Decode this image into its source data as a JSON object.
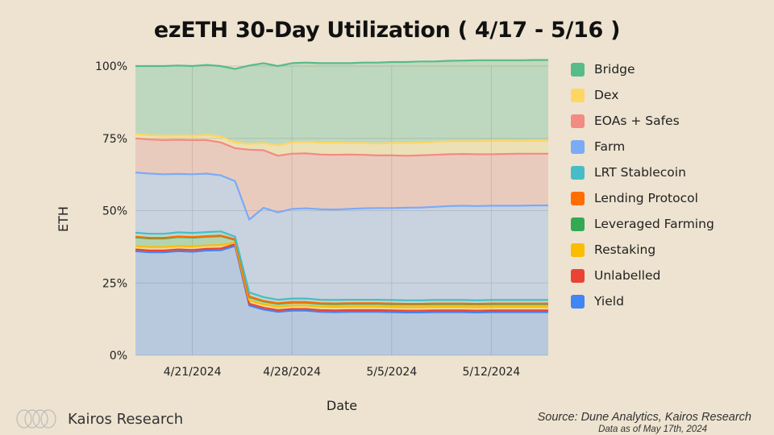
{
  "chart_data": {
    "type": "area",
    "stacked": true,
    "title": "ezETH 30-Day Utilization ( 4/17 - 5/16 )",
    "xlabel": "Date",
    "ylabel": "ETH",
    "ylim": [
      0,
      100
    ],
    "yticks": [
      "0%",
      "25%",
      "50%",
      "75%",
      "100%"
    ],
    "xticks": [
      {
        "date": "2024-04-21",
        "label": "4/21/2024"
      },
      {
        "date": "2024-04-28",
        "label": "4/28/2024"
      },
      {
        "date": "2024-05-05",
        "label": "5/5/2024"
      },
      {
        "date": "2024-05-12",
        "label": "5/12/2024"
      }
    ],
    "grid": true,
    "legend_position": "right",
    "x": [
      "2024-04-17",
      "2024-04-18",
      "2024-04-19",
      "2024-04-20",
      "2024-04-21",
      "2024-04-22",
      "2024-04-23",
      "2024-04-24",
      "2024-04-25",
      "2024-04-26",
      "2024-04-27",
      "2024-04-28",
      "2024-04-29",
      "2024-04-30",
      "2024-05-01",
      "2024-05-02",
      "2024-05-03",
      "2024-05-04",
      "2024-05-05",
      "2024-05-06",
      "2024-05-07",
      "2024-05-08",
      "2024-05-09",
      "2024-05-10",
      "2024-05-11",
      "2024-05-12",
      "2024-05-13",
      "2024-05-14",
      "2024-05-15",
      "2024-05-16"
    ],
    "series": [
      {
        "name": "Yield",
        "color": "#4285f4",
        "values": [
          36.0,
          35.6,
          35.6,
          36.0,
          35.8,
          36.2,
          36.3,
          37.8,
          17.2,
          15.8,
          15.0,
          15.4,
          15.4,
          15.0,
          14.9,
          15.0,
          15.0,
          15.0,
          14.9,
          14.8,
          14.8,
          14.9,
          14.9,
          14.9,
          14.8,
          14.9,
          14.9,
          14.9,
          14.9,
          14.9
        ]
      },
      {
        "name": "Unlabelled",
        "color": "#ea4335",
        "values": [
          0.6,
          0.6,
          0.6,
          0.6,
          0.6,
          0.6,
          0.6,
          0.6,
          0.6,
          0.6,
          0.6,
          0.6,
          0.6,
          0.6,
          0.6,
          0.6,
          0.6,
          0.6,
          0.6,
          0.6,
          0.6,
          0.6,
          0.6,
          0.6,
          0.6,
          0.6,
          0.6,
          0.6,
          0.6,
          0.6
        ]
      },
      {
        "name": "Restaking",
        "color": "#fbbc04",
        "values": [
          1.2,
          1.2,
          1.2,
          1.2,
          1.2,
          1.2,
          1.2,
          0.5,
          1.2,
          1.2,
          1.2,
          1.2,
          1.2,
          1.2,
          1.2,
          1.2,
          1.2,
          1.2,
          1.2,
          1.2,
          1.2,
          1.2,
          1.2,
          1.2,
          1.2,
          1.2,
          1.2,
          1.2,
          1.2,
          1.2
        ]
      },
      {
        "name": "Leveraged Farming",
        "color": "#34a853",
        "values": [
          3.0,
          3.0,
          3.0,
          3.1,
          3.1,
          3.0,
          3.1,
          1.0,
          1.1,
          1.0,
          1.0,
          1.0,
          1.0,
          1.0,
          1.0,
          1.0,
          1.0,
          1.0,
          1.0,
          1.0,
          1.0,
          1.0,
          1.0,
          1.0,
          1.0,
          1.0,
          1.0,
          1.0,
          1.0,
          1.0
        ]
      },
      {
        "name": "Lending Protocol",
        "color": "#ff6d01",
        "values": [
          0.2,
          0.2,
          0.2,
          0.2,
          0.2,
          0.2,
          0.2,
          0.2,
          0.2,
          0.2,
          0.2,
          0.2,
          0.2,
          0.2,
          0.2,
          0.2,
          0.2,
          0.2,
          0.2,
          0.2,
          0.2,
          0.2,
          0.2,
          0.2,
          0.2,
          0.2,
          0.2,
          0.2,
          0.2,
          0.2
        ]
      },
      {
        "name": "LRT Stablecoin",
        "color": "#46bdc6",
        "values": [
          1.4,
          1.4,
          1.4,
          1.4,
          1.4,
          1.4,
          1.4,
          0.9,
          1.4,
          1.3,
          1.2,
          1.2,
          1.2,
          1.2,
          1.2,
          1.2,
          1.2,
          1.2,
          1.2,
          1.2,
          1.2,
          1.2,
          1.2,
          1.2,
          1.2,
          1.2,
          1.2,
          1.2,
          1.2,
          1.2
        ]
      },
      {
        "name": "Farm",
        "color": "#7baaf7",
        "values": [
          20.8,
          20.8,
          20.6,
          20.2,
          20.3,
          20.2,
          19.4,
          19.2,
          25.2,
          30.9,
          30.2,
          31.0,
          31.2,
          31.3,
          31.3,
          31.4,
          31.6,
          31.7,
          31.8,
          32.0,
          32.1,
          32.2,
          32.5,
          32.6,
          32.6,
          32.6,
          32.6,
          32.6,
          32.7,
          32.7
        ]
      },
      {
        "name": "EOAs + Safes",
        "color": "#f28b82",
        "values": [
          11.8,
          11.8,
          11.8,
          11.8,
          11.8,
          11.6,
          11.4,
          11.4,
          24.2,
          19.9,
          19.6,
          19.1,
          19.0,
          18.9,
          18.9,
          18.8,
          18.5,
          18.2,
          18.2,
          18.0,
          18.0,
          18.0,
          17.9,
          17.9,
          17.9,
          17.8,
          17.9,
          18.0,
          17.9,
          17.9
        ]
      },
      {
        "name": "Dex",
        "color": "#fdd663",
        "values": [
          1.5,
          1.5,
          1.5,
          1.5,
          1.5,
          1.8,
          2.0,
          2.0,
          2.0,
          2.5,
          3.6,
          3.9,
          4.0,
          4.1,
          4.2,
          4.0,
          4.1,
          4.1,
          4.3,
          4.4,
          4.4,
          4.4,
          4.5,
          4.4,
          4.5,
          4.6,
          4.5,
          4.3,
          4.5,
          4.5
        ]
      },
      {
        "name": "Bridge",
        "color": "#57bb8a",
        "values": [
          23.5,
          23.9,
          24.1,
          24.2,
          24.1,
          24.2,
          24.4,
          25.4,
          27.1,
          27.6,
          27.4,
          27.4,
          27.4,
          27.5,
          27.5,
          27.6,
          27.8,
          28.0,
          28.0,
          28.0,
          28.1,
          27.9,
          27.8,
          27.9,
          28.0,
          27.9,
          27.9,
          28.0,
          27.9,
          27.9
        ]
      }
    ],
    "legend_order": [
      "Bridge",
      "Dex",
      "EOAs + Safes",
      "Farm",
      "LRT Stablecoin",
      "Lending Protocol",
      "Leveraged Farming",
      "Restaking",
      "Unlabelled",
      "Yield"
    ]
  },
  "footer": {
    "brand": "Kairos Research",
    "source": "Source: Dune Analytics, Kairos Research",
    "data_as_of": "Data as of May 17th, 2024"
  },
  "colors": {
    "background": "#ede3d0",
    "plot_background": "#e7e3d6"
  }
}
